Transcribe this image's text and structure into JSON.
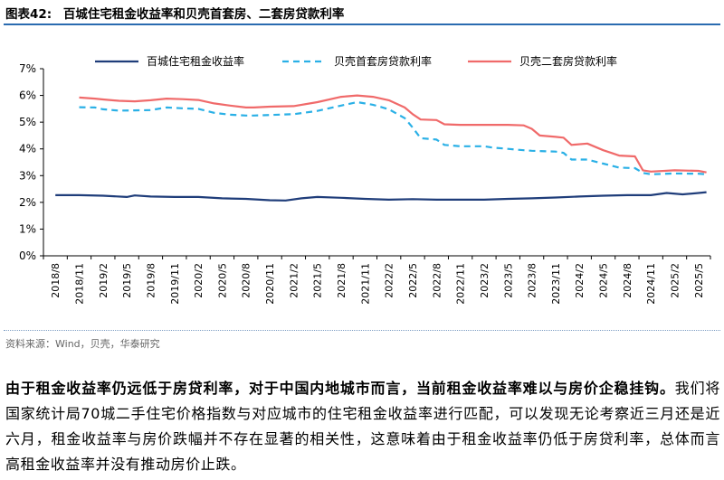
{
  "figure": {
    "label": "图表42:",
    "title": "百城住宅租金收益率和贝壳首套房、二套房贷款利率"
  },
  "source": "资料来源：Wind，贝壳，华泰研究",
  "paragraph": {
    "bold": "由于租金收益率仍远低于房贷利率，对于中国内地城市而言，当前租金收益率难以与房价企稳挂钩。",
    "normal": "我们将国家统计局70城二手住宅价格指数与对应城市的住宅租金收益率进行匹配，可以发现无论考察近三月还是近六月，租金收益率与房价跌幅并不存在显著的相关性，这意味着由于租金收益率仍低于房贷利率，总体而言高租金收益率并没有推动房价止跌。"
  },
  "colors": {
    "rent_yield": "#1f3d7a",
    "first_home": "#2ab0e6",
    "second_home": "#f06a6a",
    "axis": "#000000",
    "rule": "#2a6bb0"
  },
  "chart_data": {
    "type": "line",
    "x_ticks": [
      "2018/8",
      "2018/11",
      "2019/2",
      "2019/5",
      "2019/8",
      "2019/11",
      "2020/2",
      "2020/5",
      "2020/8",
      "2020/11",
      "2021/2",
      "2021/5",
      "2021/8",
      "2021/11",
      "2022/2",
      "2022/5",
      "2022/8",
      "2022/11",
      "2023/2",
      "2023/5",
      "2023/8",
      "2023/11",
      "2024/2",
      "2024/5",
      "2024/8",
      "2024/11",
      "2025/2",
      "2025/5"
    ],
    "y_ticks": [
      "0%",
      "1%",
      "2%",
      "3%",
      "4%",
      "5%",
      "6%",
      "7%"
    ],
    "ylim": [
      0,
      7
    ],
    "grid": false,
    "legend_position": "top",
    "series": [
      {
        "name": "百城住宅租金收益率",
        "style": "solid",
        "color_key": "rent_yield",
        "points": [
          [
            "2018-08",
            2.27
          ],
          [
            "2018-11",
            2.27
          ],
          [
            "2019-02",
            2.25
          ],
          [
            "2019-05",
            2.2
          ],
          [
            "2019-06",
            2.26
          ],
          [
            "2019-08",
            2.22
          ],
          [
            "2019-11",
            2.2
          ],
          [
            "2020-02",
            2.2
          ],
          [
            "2020-05",
            2.15
          ],
          [
            "2020-08",
            2.13
          ],
          [
            "2020-11",
            2.08
          ],
          [
            "2021-01",
            2.07
          ],
          [
            "2021-03",
            2.15
          ],
          [
            "2021-05",
            2.2
          ],
          [
            "2021-08",
            2.17
          ],
          [
            "2021-11",
            2.13
          ],
          [
            "2022-02",
            2.1
          ],
          [
            "2022-05",
            2.12
          ],
          [
            "2022-08",
            2.1
          ],
          [
            "2022-11",
            2.1
          ],
          [
            "2023-02",
            2.1
          ],
          [
            "2023-05",
            2.13
          ],
          [
            "2023-08",
            2.15
          ],
          [
            "2023-11",
            2.18
          ],
          [
            "2024-02",
            2.22
          ],
          [
            "2024-05",
            2.25
          ],
          [
            "2024-08",
            2.27
          ],
          [
            "2024-11",
            2.27
          ],
          [
            "2025-01",
            2.35
          ],
          [
            "2025-03",
            2.3
          ],
          [
            "2025-05",
            2.35
          ],
          [
            "2025-06",
            2.38
          ]
        ]
      },
      {
        "name": "贝壳首套房贷款利率",
        "style": "dashed",
        "color_key": "first_home",
        "points": [
          [
            "2018-11",
            5.56
          ],
          [
            "2019-01",
            5.55
          ],
          [
            "2019-02",
            5.48
          ],
          [
            "2019-04",
            5.43
          ],
          [
            "2019-06",
            5.44
          ],
          [
            "2019-08",
            5.45
          ],
          [
            "2019-10",
            5.55
          ],
          [
            "2019-12",
            5.52
          ],
          [
            "2020-02",
            5.5
          ],
          [
            "2020-04",
            5.35
          ],
          [
            "2020-06",
            5.28
          ],
          [
            "2020-08",
            5.25
          ],
          [
            "2020-09",
            5.25
          ],
          [
            "2020-11",
            5.27
          ],
          [
            "2021-02",
            5.3
          ],
          [
            "2021-05",
            5.42
          ],
          [
            "2021-08",
            5.62
          ],
          [
            "2021-10",
            5.75
          ],
          [
            "2021-12",
            5.65
          ],
          [
            "2022-02",
            5.48
          ],
          [
            "2022-04",
            5.15
          ],
          [
            "2022-05",
            4.8
          ],
          [
            "2022-06",
            4.4
          ],
          [
            "2022-08",
            4.35
          ],
          [
            "2022-09",
            4.15
          ],
          [
            "2022-11",
            4.1
          ],
          [
            "2023-02",
            4.1
          ],
          [
            "2023-03",
            4.05
          ],
          [
            "2023-05",
            4.0
          ],
          [
            "2023-07",
            3.95
          ],
          [
            "2023-08",
            3.93
          ],
          [
            "2023-11",
            3.9
          ],
          [
            "2023-12",
            3.85
          ],
          [
            "2024-01",
            3.6
          ],
          [
            "2024-03",
            3.6
          ],
          [
            "2024-05",
            3.45
          ],
          [
            "2024-07",
            3.3
          ],
          [
            "2024-09",
            3.28
          ],
          [
            "2024-10",
            3.1
          ],
          [
            "2024-11",
            3.05
          ],
          [
            "2025-02",
            3.08
          ],
          [
            "2025-05",
            3.07
          ],
          [
            "2025-06",
            3.05
          ]
        ]
      },
      {
        "name": "贝壳二套房贷款利率",
        "style": "solid",
        "color_key": "second_home",
        "points": [
          [
            "2018-11",
            5.92
          ],
          [
            "2019-01",
            5.88
          ],
          [
            "2019-02",
            5.85
          ],
          [
            "2019-04",
            5.8
          ],
          [
            "2019-06",
            5.78
          ],
          [
            "2019-08",
            5.82
          ],
          [
            "2019-10",
            5.88
          ],
          [
            "2019-12",
            5.86
          ],
          [
            "2020-02",
            5.83
          ],
          [
            "2020-04",
            5.7
          ],
          [
            "2020-06",
            5.62
          ],
          [
            "2020-08",
            5.55
          ],
          [
            "2020-09",
            5.55
          ],
          [
            "2020-11",
            5.58
          ],
          [
            "2021-02",
            5.6
          ],
          [
            "2021-05",
            5.75
          ],
          [
            "2021-08",
            5.95
          ],
          [
            "2021-10",
            6.0
          ],
          [
            "2021-12",
            5.95
          ],
          [
            "2022-02",
            5.82
          ],
          [
            "2022-04",
            5.55
          ],
          [
            "2022-05",
            5.3
          ],
          [
            "2022-06",
            5.1
          ],
          [
            "2022-08",
            5.08
          ],
          [
            "2022-09",
            4.92
          ],
          [
            "2022-11",
            4.9
          ],
          [
            "2023-02",
            4.9
          ],
          [
            "2023-05",
            4.9
          ],
          [
            "2023-07",
            4.88
          ],
          [
            "2023-08",
            4.75
          ],
          [
            "2023-09",
            4.5
          ],
          [
            "2023-11",
            4.45
          ],
          [
            "2023-12",
            4.42
          ],
          [
            "2024-01",
            4.15
          ],
          [
            "2024-03",
            4.2
          ],
          [
            "2024-05",
            3.95
          ],
          [
            "2024-06",
            3.85
          ],
          [
            "2024-07",
            3.75
          ],
          [
            "2024-09",
            3.72
          ],
          [
            "2024-10",
            3.2
          ],
          [
            "2024-11",
            3.15
          ],
          [
            "2025-02",
            3.2
          ],
          [
            "2025-05",
            3.18
          ],
          [
            "2025-06",
            3.12
          ]
        ]
      }
    ]
  }
}
